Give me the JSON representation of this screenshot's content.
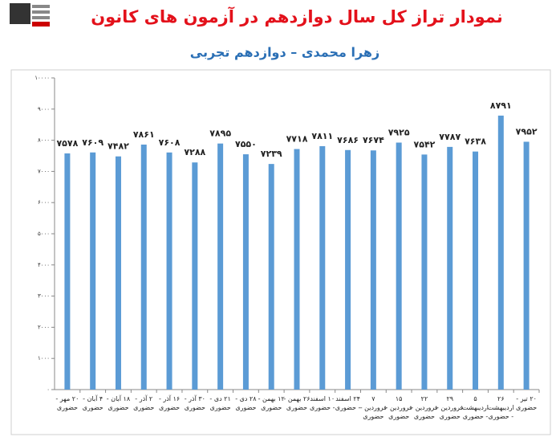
{
  "chart_data": {
    "type": "bar",
    "title": "نمودار تراز کل سال دوازدهم در آزمون های کانون",
    "subtitle": "زهرا محمدی – دوازدهم تجربی",
    "categories": [
      "۲۰ مهر - حضوری",
      "۴ آبان - حضوری",
      "۱۸ آبان - حضوری",
      "۲ آذر - حضوری",
      "۱۶ آذر - حضوری",
      "۳۰ آذر - حضوری",
      "۲۱ دی - حضوری",
      "۲۸ دی - حضوری",
      "۱۲ بهمن - حضوری",
      "۲۶ بهمن - حضوری",
      "۱۰ اسفند - حضوری",
      "۲۴ اسفند - حضوری",
      "۷ فروردین - حضوری",
      "۱۵ فروردین - حضوری",
      "۲۲ فروردین - حضوری",
      "۲۹ فروردین - حضوری",
      "۵ اردیبهشت - حضوری",
      "۲۶ اردیبهشت - حضوری",
      "۲۰ تیر - حضوری"
    ],
    "values": [
      7578,
      7609,
      7482,
      7861,
      7608,
      7288,
      7895,
      7550,
      7239,
      7718,
      7811,
      7686,
      7674,
      7925,
      7542,
      7787,
      7638,
      8791,
      7952
    ],
    "value_labels": [
      "۷۵۷۸",
      "۷۶۰۹",
      "۷۴۸۲",
      "۷۸۶۱",
      "۷۶۰۸",
      "۷۲۸۸",
      "۷۸۹۵",
      "۷۵۵۰",
      "۷۲۳۹",
      "۷۷۱۸",
      "۷۸۱۱",
      "۷۶۸۶",
      "۷۶۷۴",
      "۷۹۲۵",
      "۷۵۴۲",
      "۷۷۸۷",
      "۷۶۳۸",
      "۸۷۹۱",
      "۷۹۵۲"
    ],
    "color": "#5b9bd5",
    "ylim": [
      0,
      10000
    ],
    "yticks": [
      {
        "value": 0,
        "label": "۰"
      },
      {
        "value": 1000,
        "label": "۱۰۰۰"
      },
      {
        "value": 2000,
        "label": "۲۰۰۰"
      },
      {
        "value": 3000,
        "label": "۳۰۰۰"
      },
      {
        "value": 4000,
        "label": "۴۰۰۰"
      },
      {
        "value": 5000,
        "label": "۵۰۰۰"
      },
      {
        "value": 6000,
        "label": "۶۰۰۰"
      },
      {
        "value": 7000,
        "label": "۷۰۰۰"
      },
      {
        "value": 8000,
        "label": "۸۰۰۰"
      },
      {
        "value": 9000,
        "label": "۹۰۰۰"
      },
      {
        "value": 10000,
        "label": "۱۰۰۰۰"
      }
    ],
    "grid": false
  }
}
